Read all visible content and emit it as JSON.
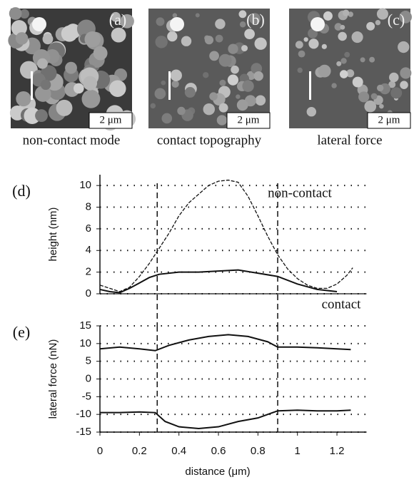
{
  "panels": [
    {
      "label": "(a)",
      "scale": "2 μm",
      "caption": "non-contact mode"
    },
    {
      "label": "(b)",
      "scale": "2 μm",
      "caption": "contact topography"
    },
    {
      "label": "(c)",
      "scale": "2 μm",
      "caption": "lateral force"
    }
  ],
  "chart_data": [
    {
      "type": "line",
      "panel_label": "(d)",
      "ylabel": "height  (nm)",
      "xlim": [
        0,
        1.35
      ],
      "ylim": [
        0,
        11
      ],
      "yticks": [
        0,
        2,
        4,
        6,
        8,
        10
      ],
      "grid": true,
      "vlines": [
        0.29,
        0.9
      ],
      "series": [
        {
          "name": "non-contact",
          "color": "#111111",
          "style": "dashed",
          "x": [
            0,
            0.05,
            0.1,
            0.15,
            0.2,
            0.25,
            0.3,
            0.35,
            0.4,
            0.45,
            0.5,
            0.55,
            0.6,
            0.65,
            0.7,
            0.75,
            0.8,
            0.85,
            0.9,
            0.95,
            1.0,
            1.05,
            1.1,
            1.15,
            1.2,
            1.25,
            1.28
          ],
          "values": [
            0.8,
            0.5,
            0.2,
            0.6,
            1.6,
            2.8,
            4.2,
            5.6,
            7.2,
            8.4,
            9.2,
            10,
            10.4,
            10.5,
            10.3,
            9,
            7.2,
            5.3,
            3.6,
            2.3,
            1.4,
            0.8,
            0.5,
            0.5,
            0.9,
            1.7,
            2.4
          ]
        },
        {
          "name": "contact",
          "color": "#111111",
          "style": "solid",
          "x": [
            0,
            0.05,
            0.1,
            0.15,
            0.2,
            0.25,
            0.3,
            0.4,
            0.5,
            0.6,
            0.7,
            0.8,
            0.9,
            1.0,
            1.1,
            1.2
          ],
          "values": [
            0.4,
            0.2,
            0.1,
            0.5,
            1.0,
            1.5,
            1.8,
            2.0,
            2.0,
            2.1,
            2.2,
            1.9,
            1.6,
            0.9,
            0.4,
            0.2
          ]
        }
      ]
    },
    {
      "type": "line",
      "panel_label": "(e)",
      "ylabel": "lateral force  (nN)",
      "xlabel": "distance  (μm)",
      "xlim": [
        0,
        1.35
      ],
      "xticks": [
        0,
        0.2,
        0.4,
        0.6,
        0.8,
        1,
        1.2
      ],
      "ylim": [
        -15,
        15
      ],
      "yticks": [
        15,
        10,
        5,
        0,
        -5,
        -10,
        -15
      ],
      "grid": true,
      "vlines": [
        0.29,
        0.9
      ],
      "series": [
        {
          "color": "#111111",
          "style": "solid",
          "x": [
            0,
            0.1,
            0.2,
            0.28,
            0.35,
            0.45,
            0.55,
            0.65,
            0.75,
            0.85,
            0.9,
            1.0,
            1.1,
            1.2,
            1.27
          ],
          "values": [
            8.5,
            9,
            8.5,
            8,
            9.5,
            11,
            12,
            12.5,
            12,
            10.5,
            9,
            9,
            8.8,
            8.5,
            8.3
          ]
        },
        {
          "color": "#111111",
          "style": "solid",
          "x": [
            0,
            0.1,
            0.2,
            0.28,
            0.33,
            0.4,
            0.5,
            0.6,
            0.7,
            0.8,
            0.9,
            1.0,
            1.1,
            1.2,
            1.27
          ],
          "values": [
            -9.5,
            -9.5,
            -9.3,
            -9.5,
            -12,
            -13.5,
            -14,
            -13.5,
            -12,
            -11,
            -9,
            -8.8,
            -9,
            -9,
            -8.8
          ]
        }
      ]
    }
  ]
}
